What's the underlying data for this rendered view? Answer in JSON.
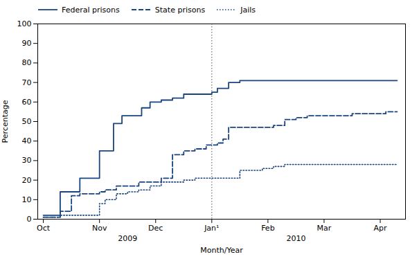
{
  "chart_data": {
    "type": "step",
    "xlabel": "Month/Year",
    "ylabel": "Percentage",
    "xlim": [
      -0.1,
      6.45
    ],
    "xticks": [
      {
        "value": 0,
        "label": "Oct"
      },
      {
        "value": 1,
        "label": "Nov"
      },
      {
        "value": 2,
        "label": "Dec"
      },
      {
        "value": 3,
        "label": "Jan¹"
      },
      {
        "value": 4,
        "label": "Feb"
      },
      {
        "value": 5,
        "label": "Mar"
      },
      {
        "value": 6,
        "label": "Apr"
      }
    ],
    "ylim": [
      0,
      100
    ],
    "yticks": [
      0,
      10,
      20,
      30,
      40,
      50,
      60,
      70,
      80,
      90,
      100
    ],
    "grid": false,
    "legend": "upper left",
    "series": [
      {
        "name": "Federal prisons",
        "color": "#1a4480",
        "line_style": "solid",
        "x": [
          0,
          0.3,
          0.5,
          0.65,
          1.0,
          1.1,
          1.25,
          1.4,
          1.6,
          1.75,
          1.9,
          2.1,
          2.3,
          2.5,
          2.7,
          2.9,
          3.0,
          3.1,
          3.3,
          3.5,
          3.7,
          3.9,
          4.1,
          4.3,
          4.5,
          4.7,
          4.9,
          5.1,
          5.3,
          5.5,
          5.7,
          5.9,
          6.1,
          6.3
        ],
        "values": [
          2,
          14,
          14,
          21,
          35,
          35,
          49,
          53,
          53,
          57,
          60,
          61,
          62,
          64,
          64,
          64,
          65,
          67,
          70,
          71,
          71,
          71,
          71,
          71,
          71,
          71,
          71,
          71,
          71,
          71,
          71,
          71,
          71,
          71
        ]
      },
      {
        "name": "State prisons",
        "color": "#1a4480",
        "line_style": "dashed",
        "x": [
          0,
          0.3,
          0.5,
          0.65,
          1.0,
          1.1,
          1.3,
          1.5,
          1.7,
          1.9,
          2.1,
          2.3,
          2.5,
          2.7,
          2.9,
          3.1,
          3.2,
          3.3,
          3.5,
          3.6,
          3.7,
          3.9,
          4.0,
          4.1,
          4.3,
          4.5,
          4.7,
          4.9,
          5.1,
          5.3,
          5.5,
          5.7,
          5.9,
          6.1,
          6.3
        ],
        "values": [
          1,
          4,
          12,
          13,
          14,
          15,
          17,
          17,
          19,
          19,
          21,
          33,
          35,
          36,
          38,
          39,
          41,
          47,
          47,
          47,
          47,
          47,
          47,
          48,
          51,
          52,
          53,
          53,
          53,
          53,
          54,
          54,
          54,
          55,
          55
        ]
      },
      {
        "name": "Jails",
        "color": "#1a4480",
        "line_style": "dotted",
        "x": [
          0,
          0.3,
          0.5,
          0.65,
          1.0,
          1.1,
          1.3,
          1.5,
          1.7,
          1.9,
          2.1,
          2.3,
          2.5,
          2.7,
          2.9,
          3.1,
          3.3,
          3.5,
          3.6,
          3.7,
          3.9,
          4.1,
          4.3,
          4.5,
          4.7,
          4.9,
          5.1,
          5.3,
          5.5,
          5.7,
          5.9,
          6.1,
          6.3
        ],
        "values": [
          1,
          2,
          2,
          2,
          8,
          10,
          13,
          14,
          15,
          17,
          19,
          19,
          20,
          21,
          21,
          21,
          21,
          25,
          25,
          25,
          26,
          27,
          28,
          28,
          28,
          28,
          28,
          28,
          28,
          28,
          28,
          28,
          28
        ]
      }
    ],
    "vlines": [
      {
        "x": 3.0,
        "color": "#555555",
        "line_style": "dotted"
      }
    ],
    "annotations": [
      {
        "text": "2009",
        "x": 1.5
      },
      {
        "text": "2010",
        "x": 4.5
      }
    ]
  }
}
